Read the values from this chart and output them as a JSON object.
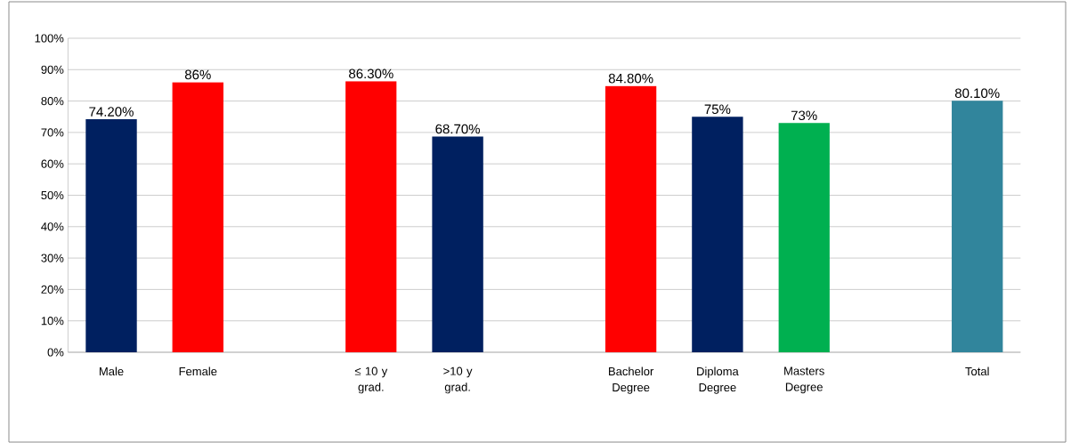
{
  "chart_data": {
    "type": "bar",
    "categories": [
      "Male",
      "Female",
      null,
      "≤ 10 y grad.",
      ">10 y grad.",
      null,
      "Bachelor Degree",
      "Diploma Degree",
      "Masters Degree",
      null,
      "Total"
    ],
    "values": [
      74.2,
      86,
      null,
      86.3,
      68.7,
      null,
      84.8,
      75,
      73,
      null,
      80.1
    ],
    "colors": [
      "#002060",
      "#ff0000",
      null,
      "#ff0000",
      "#002060",
      null,
      "#ff0000",
      "#002060",
      "#00b050",
      null,
      "#31859c"
    ],
    "value_labels": [
      "74.20%",
      "86%",
      null,
      "86.30%",
      "68.70%",
      null,
      "84.80%",
      "75%",
      "73%",
      null,
      "80.10%"
    ],
    "ylim": [
      0,
      100
    ],
    "yticks": [
      {
        "value": 0,
        "label": "0%"
      },
      {
        "value": 10,
        "label": "10%"
      },
      {
        "value": 20,
        "label": "20%"
      },
      {
        "value": 30,
        "label": "30%"
      },
      {
        "value": 40,
        "label": "40%"
      },
      {
        "value": 50,
        "label": "50%"
      },
      {
        "value": 60,
        "label": "60%"
      },
      {
        "value": 70,
        "label": "70%"
      },
      {
        "value": 80,
        "label": "80%"
      },
      {
        "value": 90,
        "label": "90%"
      },
      {
        "value": 100,
        "label": "100%"
      }
    ],
    "grid": "y"
  }
}
